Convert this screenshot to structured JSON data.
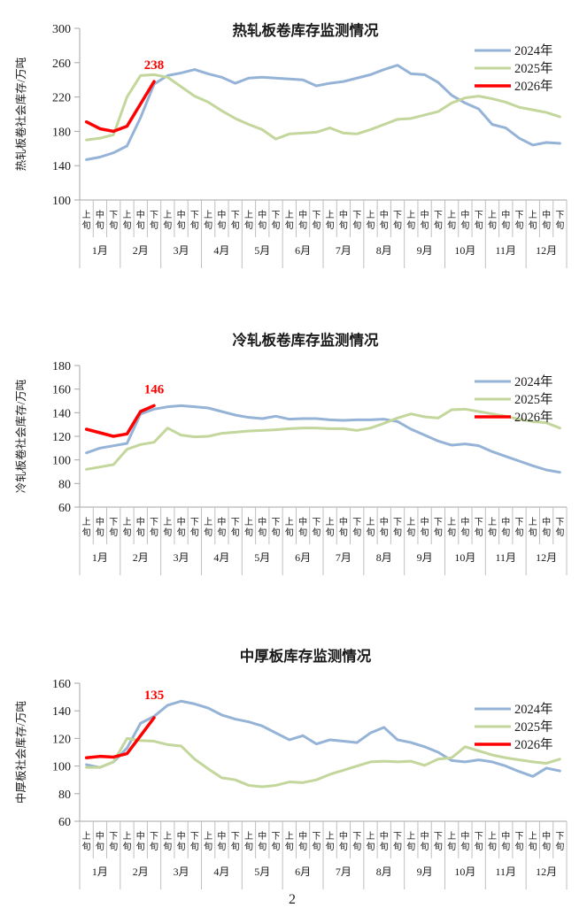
{
  "page": {
    "page_number": "2",
    "background": "#FFFFFF"
  },
  "chart_data": [
    {
      "type": "line",
      "title": "热轧板卷库存监测情况",
      "ylabel": "热轧板卷社会库存/万吨",
      "ylim": [
        100,
        300
      ],
      "yticks": [
        100,
        140,
        180,
        220,
        260,
        300
      ],
      "grid": false,
      "legend_position": "top-right",
      "legend": [
        "2024年",
        "2025年",
        "2026年"
      ],
      "months": [
        "1月",
        "2月",
        "3月",
        "4月",
        "5月",
        "6月",
        "7月",
        "8月",
        "9月",
        "10月",
        "11月",
        "12月"
      ],
      "periods": [
        "上旬",
        "中旬",
        "下旬"
      ],
      "annotation": {
        "text": "238",
        "color": "#FF0000"
      },
      "series": [
        {
          "name": "2024年",
          "color": "#95B3D7",
          "width": 3,
          "values": [
            147,
            150,
            155,
            163,
            196,
            235,
            245,
            248,
            252,
            247,
            243,
            236,
            242,
            243,
            242,
            241,
            240,
            233,
            236,
            238,
            242,
            246,
            252,
            257,
            247,
            246,
            237,
            222,
            213,
            206,
            188,
            184,
            172,
            164,
            167,
            166
          ]
        },
        {
          "name": "2025年",
          "color": "#C3D69B",
          "width": 3,
          "values": [
            170,
            172,
            176,
            220,
            245,
            246,
            243,
            232,
            221,
            214,
            204,
            195,
            188,
            182,
            171,
            177,
            178,
            179,
            184,
            178,
            177,
            182,
            188,
            194,
            195,
            199,
            203,
            213,
            219,
            221,
            218,
            214,
            208,
            205,
            202,
            197
          ]
        },
        {
          "name": "2026年",
          "color": "#FF0000",
          "width": 3.5,
          "values": [
            191,
            183,
            180,
            186,
            212,
            238
          ]
        }
      ]
    },
    {
      "type": "line",
      "title": "冷轧板卷库存监测情况",
      "ylabel": "冷轧板卷社会库存/万吨",
      "ylim": [
        60,
        180
      ],
      "yticks": [
        60,
        80,
        100,
        120,
        140,
        160,
        180
      ],
      "grid": false,
      "legend_position": "top-right",
      "legend": [
        "2024年",
        "2025年",
        "2026年"
      ],
      "months": [
        "1月",
        "2月",
        "3月",
        "4月",
        "5月",
        "6月",
        "7月",
        "8月",
        "9月",
        "10月",
        "11月",
        "12月"
      ],
      "periods": [
        "上旬",
        "中旬",
        "下旬"
      ],
      "annotation": {
        "text": "146",
        "color": "#FF0000"
      },
      "series": [
        {
          "name": "2024年",
          "color": "#95B3D7",
          "width": 3,
          "values": [
            106,
            110,
            112,
            114,
            139,
            143,
            145,
            146,
            145,
            144,
            141,
            138,
            136,
            135,
            137,
            134.5,
            135,
            135,
            134,
            133.5,
            134,
            134,
            134.5,
            132.5,
            126,
            121,
            116,
            112.5,
            113.5,
            112,
            107,
            103,
            99,
            95,
            91.5,
            89.5
          ]
        },
        {
          "name": "2025年",
          "color": "#C3D69B",
          "width": 3,
          "values": [
            92,
            94,
            96,
            109,
            113,
            115,
            127,
            121,
            119.5,
            120,
            122.5,
            123.5,
            124.5,
            125,
            125.5,
            126.5,
            127,
            127,
            126.5,
            126.5,
            125,
            127,
            131,
            135.5,
            139,
            136.5,
            135.5,
            142.5,
            143,
            141,
            139,
            137,
            134.5,
            132.5,
            131.5,
            127
          ]
        },
        {
          "name": "2026年",
          "color": "#FF0000",
          "width": 3.5,
          "values": [
            126,
            123,
            120,
            122,
            141,
            146
          ]
        }
      ]
    },
    {
      "type": "line",
      "title": "中厚板库存监测情况",
      "ylabel": "中厚板社会库存/万吨",
      "ylim": [
        60,
        160
      ],
      "yticks": [
        60,
        80,
        100,
        120,
        140,
        160
      ],
      "grid": false,
      "legend_position": "top-right",
      "legend": [
        "2024年",
        "2025年",
        "2026年"
      ],
      "months": [
        "1月",
        "2月",
        "3月",
        "4月",
        "5月",
        "6月",
        "7月",
        "8月",
        "9月",
        "10月",
        "11月",
        "12月"
      ],
      "periods": [
        "上旬",
        "中旬",
        "下旬"
      ],
      "annotation": {
        "text": "135",
        "color": "#FF0000"
      },
      "series": [
        {
          "name": "2024年",
          "color": "#95B3D7",
          "width": 3,
          "values": [
            101,
            99,
            103,
            113,
            131,
            136,
            144,
            147,
            145,
            142,
            137,
            134,
            132,
            129,
            124,
            119,
            122,
            116,
            119,
            118,
            117,
            124,
            128,
            119,
            117,
            114,
            110,
            104,
            103,
            104.5,
            103,
            100,
            96,
            92.5,
            98.5,
            96.5
          ]
        },
        {
          "name": "2025年",
          "color": "#C3D69B",
          "width": 3,
          "values": [
            99,
            99,
            103,
            120,
            118.5,
            118,
            115.5,
            114.5,
            105,
            98,
            91.5,
            90,
            86,
            85,
            86,
            88.5,
            88,
            90,
            94,
            97,
            100,
            103,
            103.5,
            103,
            103.5,
            100.5,
            105,
            106,
            114,
            111,
            108,
            106,
            104.5,
            103,
            102,
            105
          ]
        },
        {
          "name": "2026年",
          "color": "#FF0000",
          "width": 3.5,
          "values": [
            106,
            107,
            106.5,
            109,
            122,
            135
          ]
        }
      ]
    }
  ]
}
